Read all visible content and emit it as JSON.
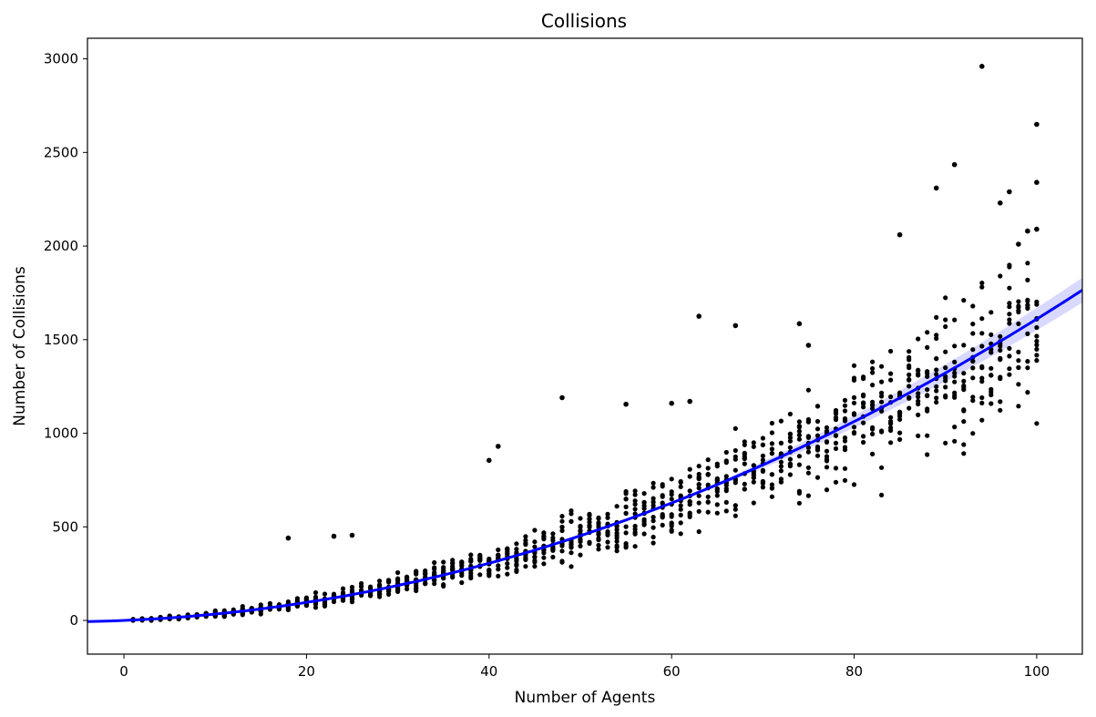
{
  "chart_data": {
    "type": "scatter",
    "title": "Collisions",
    "xlabel": "Number of Agents",
    "ylabel": "Number of Collisions",
    "xlim": [
      -4,
      105
    ],
    "ylim": [
      -180,
      3110
    ],
    "xticks": [
      0,
      20,
      40,
      60,
      80,
      100
    ],
    "yticks": [
      0,
      500,
      1000,
      1500,
      2000,
      2500,
      3000
    ],
    "grid": false,
    "point_color": "#000000",
    "fit_color": "#0000ff",
    "fit": {
      "type": "quadratic",
      "coefficients": [
        0,
        2.0,
        0.141
      ],
      "x_range": [
        -4,
        105
      ],
      "confidence_band": true
    },
    "outliers": [
      {
        "x": 18,
        "y": 440
      },
      {
        "x": 23,
        "y": 450
      },
      {
        "x": 25,
        "y": 455
      },
      {
        "x": 40,
        "y": 855
      },
      {
        "x": 41,
        "y": 930
      },
      {
        "x": 48,
        "y": 1190
      },
      {
        "x": 55,
        "y": 1155
      },
      {
        "x": 60,
        "y": 1160
      },
      {
        "x": 62,
        "y": 1170
      },
      {
        "x": 63,
        "y": 1625
      },
      {
        "x": 67,
        "y": 1575
      },
      {
        "x": 74,
        "y": 1585
      },
      {
        "x": 75,
        "y": 1470
      },
      {
        "x": 85,
        "y": 2060
      },
      {
        "x": 89,
        "y": 2310
      },
      {
        "x": 91,
        "y": 2435
      },
      {
        "x": 94,
        "y": 2960
      },
      {
        "x": 96,
        "y": 2230
      },
      {
        "x": 97,
        "y": 2290
      },
      {
        "x": 100,
        "y": 2650
      },
      {
        "x": 100,
        "y": 2340
      },
      {
        "x": 100,
        "y": 2090
      },
      {
        "x": 99,
        "y": 2080
      },
      {
        "x": 98,
        "y": 2010
      }
    ],
    "scatter_rule": {
      "x_min": 1,
      "x_max": 100,
      "points_per_x": 12,
      "mean": "2.0*x + 0.141*x^2",
      "spread": "0.18*mean + 4"
    }
  }
}
